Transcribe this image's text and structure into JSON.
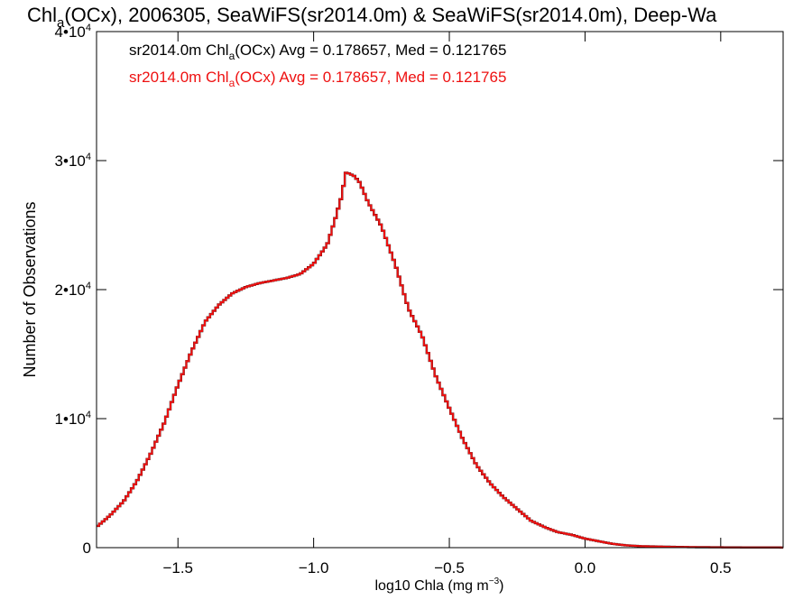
{
  "chart_data": {
    "type": "line",
    "title": {
      "pre": "Chl",
      "sub": "a",
      "post": "(OCx), 2006305, SeaWiFS(sr2014.0m) & SeaWiFS(sr2014.0m), Deep-Wa"
    },
    "xlabel": {
      "pre": "log10 Chla (mg m",
      "sup": "−3",
      "post": ")"
    },
    "ylabel": "Number of Observations",
    "xlim": [
      -1.8,
      0.73
    ],
    "ylim": [
      0,
      40000
    ],
    "xticks": [
      {
        "value": -1.5,
        "label": "−1.5"
      },
      {
        "value": -1.0,
        "label": "−1.0"
      },
      {
        "value": -0.5,
        "label": "−0.5"
      },
      {
        "value": 0.0,
        "label": "0.0"
      },
      {
        "value": 0.5,
        "label": "0.5"
      }
    ],
    "yticks": [
      {
        "value": 0,
        "label": "0",
        "exp": ""
      },
      {
        "value": 10000,
        "label": "1•10",
        "exp": "4"
      },
      {
        "value": 20000,
        "label": "2•10",
        "exp": "4"
      },
      {
        "value": 30000,
        "label": "3•10",
        "exp": "4"
      },
      {
        "value": 40000,
        "label": "4•10",
        "exp": "4"
      }
    ],
    "grid": false,
    "legend_placement": "top-left",
    "annotations": [
      {
        "pre": "sr2014.0m Chl",
        "sub": "a",
        "post": "(OCx) Avg = 0.178657, Med = 0.121765",
        "color": "#000000"
      },
      {
        "pre": "sr2014.0m Chl",
        "sub": "a",
        "post": "(OCx) Avg = 0.178657, Med = 0.121765",
        "color": "#ee1111"
      }
    ],
    "series": [
      {
        "color": "#000000",
        "style": "step",
        "shape": "histogram"
      },
      {
        "color": "#ee1111",
        "style": "step",
        "x": [
          -1.8,
          -1.75,
          -1.7,
          -1.65,
          -1.6,
          -1.55,
          -1.5,
          -1.45,
          -1.4,
          -1.35,
          -1.3,
          -1.25,
          -1.2,
          -1.15,
          -1.1,
          -1.05,
          -1.0,
          -0.95,
          -0.92,
          -0.9,
          -0.88,
          -0.85,
          -0.83,
          -0.8,
          -0.75,
          -0.7,
          -0.65,
          -0.6,
          -0.55,
          -0.5,
          -0.45,
          -0.4,
          -0.35,
          -0.3,
          -0.25,
          -0.2,
          -0.15,
          -0.1,
          -0.05,
          0.0,
          0.05,
          0.1,
          0.15,
          0.2,
          0.3,
          0.4,
          0.5,
          0.6,
          0.73
        ],
        "values": [
          1600,
          2500,
          3600,
          5200,
          7300,
          9700,
          12600,
          15200,
          17500,
          18800,
          19700,
          20200,
          20500,
          20700,
          20900,
          21200,
          22000,
          23500,
          25500,
          27000,
          29100,
          28800,
          28300,
          26800,
          24900,
          22000,
          18500,
          16400,
          13300,
          10800,
          8400,
          6400,
          5000,
          3900,
          3000,
          2100,
          1600,
          1200,
          1000,
          700,
          500,
          300,
          180,
          120,
          70,
          40,
          25,
          15,
          10
        ]
      }
    ]
  }
}
